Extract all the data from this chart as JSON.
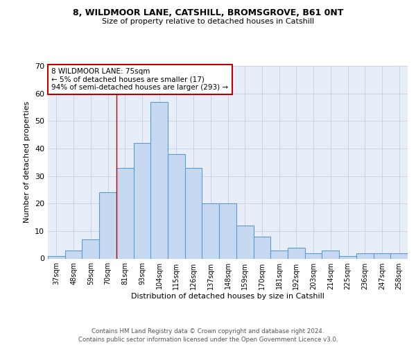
{
  "title1": "8, WILDMOOR LANE, CATSHILL, BROMSGROVE, B61 0NT",
  "title2": "Size of property relative to detached houses in Catshill",
  "xlabel": "Distribution of detached houses by size in Catshill",
  "ylabel": "Number of detached properties",
  "categories": [
    "37sqm",
    "48sqm",
    "59sqm",
    "70sqm",
    "81sqm",
    "93sqm",
    "104sqm",
    "115sqm",
    "126sqm",
    "137sqm",
    "148sqm",
    "159sqm",
    "170sqm",
    "181sqm",
    "192sqm",
    "203sqm",
    "214sqm",
    "225sqm",
    "236sqm",
    "247sqm",
    "258sqm"
  ],
  "values": [
    1,
    3,
    7,
    24,
    33,
    42,
    57,
    38,
    33,
    20,
    20,
    12,
    8,
    3,
    4,
    2,
    3,
    1,
    2,
    2,
    2
  ],
  "bar_color": "#c6d9f1",
  "bar_edge_color": "#5b9bd5",
  "bar_edge_width": 0.8,
  "vline_x": 3.5,
  "vline_color": "#c00000",
  "annotation_text": "8 WILDMOOR LANE: 75sqm\n← 5% of detached houses are smaller (17)\n94% of semi-detached houses are larger (293) →",
  "annotation_box_color": "#ffffff",
  "annotation_box_edge": "#c00000",
  "ylim": [
    0,
    70
  ],
  "yticks": [
    0,
    10,
    20,
    30,
    40,
    50,
    60,
    70
  ],
  "grid_color": "#c8d4e8",
  "bg_color": "#e8eef7",
  "footer1": "Contains HM Land Registry data © Crown copyright and database right 2024.",
  "footer2": "Contains public sector information licensed under the Open Government Licence v3.0."
}
